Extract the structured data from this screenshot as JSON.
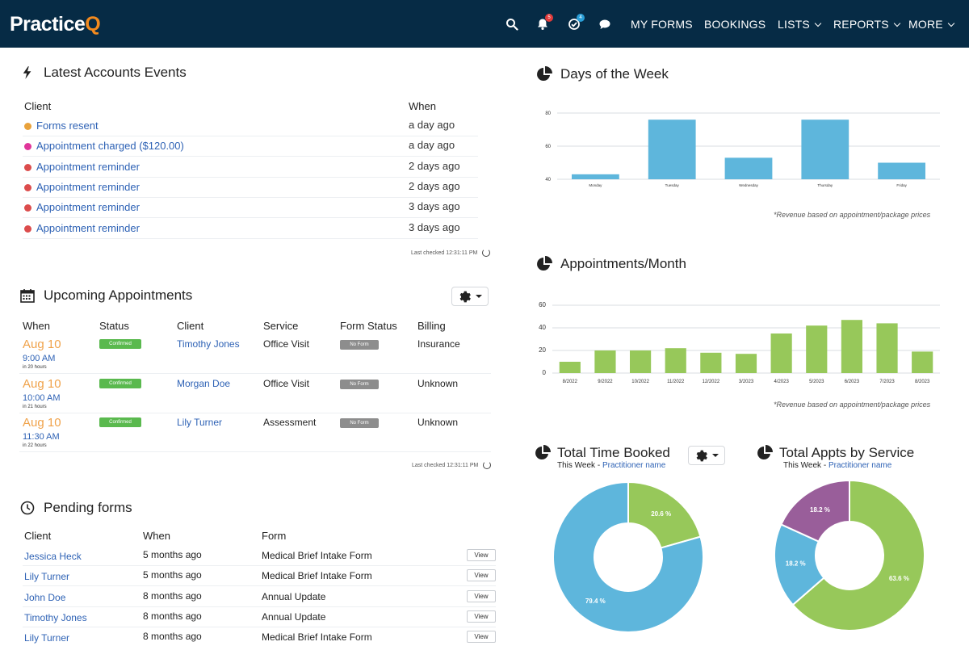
{
  "app": {
    "logo_main": "Practice",
    "logo_accent": "Q"
  },
  "nav": {
    "notifications_count": "5",
    "tasks_count": "4",
    "links": [
      "MY FORMS",
      "BOOKINGS",
      "LISTS",
      "REPORTS",
      "MORE"
    ]
  },
  "events": {
    "title": "Latest Accounts Events",
    "col_client": "Client",
    "col_when": "When",
    "rows": [
      {
        "name": "Forms resent",
        "when": "a day ago",
        "color": "#e9a23b"
      },
      {
        "name": "Appointment charged ($120.00)",
        "when": "a day ago",
        "color": "#e0359a"
      },
      {
        "name": "Appointment reminder",
        "when": "2 days ago",
        "color": "#dc4c4c"
      },
      {
        "name": "Appointment reminder",
        "when": "2 days ago",
        "color": "#dc4c4c"
      },
      {
        "name": "Appointment reminder",
        "when": "3 days ago",
        "color": "#dc4c4c"
      },
      {
        "name": "Appointment reminder",
        "when": "3 days ago",
        "color": "#dc4c4c"
      }
    ],
    "last_checked": "Last checked 12:31:11 PM"
  },
  "appointments": {
    "title": "Upcoming Appointments",
    "headers": [
      "When",
      "Status",
      "Client",
      "Service",
      "Form Status",
      "Billing"
    ],
    "rows": [
      {
        "date": "Aug 10",
        "time": "9:00 AM",
        "in": "in 20 hours",
        "status": "Confirmed",
        "client": "Timothy Jones",
        "service": "Office Visit",
        "form": "No Form",
        "billing": "Insurance"
      },
      {
        "date": "Aug 10",
        "time": "10:00 AM",
        "in": "in 21 hours",
        "status": "Confirmed",
        "client": "Morgan Doe",
        "service": "Office Visit",
        "form": "No Form",
        "billing": "Unknown"
      },
      {
        "date": "Aug 10",
        "time": "11:30 AM",
        "in": "in 22 hours",
        "status": "Confirmed",
        "client": "Lily Turner",
        "service": "Assessment",
        "form": "No Form",
        "billing": "Unknown"
      }
    ],
    "last_checked": "Last checked 12:31:11 PM"
  },
  "pending": {
    "title": "Pending forms",
    "headers": [
      "Client",
      "When",
      "Form"
    ],
    "view_label": "View",
    "rows": [
      {
        "client": "Jessica Heck",
        "when": "5 months ago",
        "form": "Medical Brief Intake Form"
      },
      {
        "client": "Lily Turner",
        "when": "5 months ago",
        "form": "Medical Brief Intake Form"
      },
      {
        "client": "John Doe",
        "when": "8 months ago",
        "form": "Annual Update"
      },
      {
        "client": "Timothy Jones",
        "when": "8 months ago",
        "form": "Annual Update"
      },
      {
        "client": "Lily Turner",
        "when": "8 months ago",
        "form": "Medical Brief Intake Form"
      }
    ]
  },
  "days_panel": {
    "title": "Days of the Week",
    "note": "*Revenue based on appointment/package prices"
  },
  "months_panel": {
    "title": "Appointments/Month",
    "note": "*Revenue based on appointment/package prices"
  },
  "time_panel": {
    "title": "Total Time Booked",
    "sub_prefix": "This Week - ",
    "sub_link": "Practitioner name"
  },
  "service_panel": {
    "title": "Total Appts by Service",
    "sub_prefix": "This Week - ",
    "sub_link": "Practitioner name"
  },
  "colors": {
    "nav_bg": "#062b45",
    "blue_bar": "#5eb6dc",
    "green_bar": "#97c85a",
    "purple": "#995e9a",
    "link": "#2e62b5"
  },
  "chart_data": [
    {
      "type": "bar",
      "title": "Days of the Week",
      "categories": [
        "Monday",
        "Tuesday",
        "Wednesday",
        "Thursday",
        "Friday"
      ],
      "values": [
        43,
        76,
        53,
        76,
        50
      ],
      "ylim": [
        40,
        80
      ],
      "yticks": [
        40,
        60,
        80
      ],
      "color": "#5eb6dc"
    },
    {
      "type": "bar",
      "title": "Appointments/Month",
      "categories": [
        "8/2022",
        "9/2022",
        "10/2022",
        "11/2022",
        "12/2022",
        "3/2023",
        "4/2023",
        "5/2023",
        "6/2023",
        "7/2023",
        "8/2023"
      ],
      "values": [
        10,
        20,
        20,
        22,
        18,
        17,
        35,
        42,
        47,
        44,
        19
      ],
      "ylim": [
        0,
        60
      ],
      "yticks": [
        0,
        20,
        40,
        60
      ],
      "color": "#97c85a"
    },
    {
      "type": "pie",
      "title": "Total Time Booked",
      "labels": [
        "20.6 %",
        "79.4 %"
      ],
      "values": [
        20.6,
        79.4
      ],
      "colors": [
        "#97c85a",
        "#5eb6dc"
      ]
    },
    {
      "type": "pie",
      "title": "Total Appts by Service",
      "labels": [
        "63.6 %",
        "18.2 %",
        "18.2 %"
      ],
      "values": [
        63.6,
        18.2,
        18.2
      ],
      "colors": [
        "#97c85a",
        "#5eb6dc",
        "#995e9a"
      ]
    }
  ]
}
